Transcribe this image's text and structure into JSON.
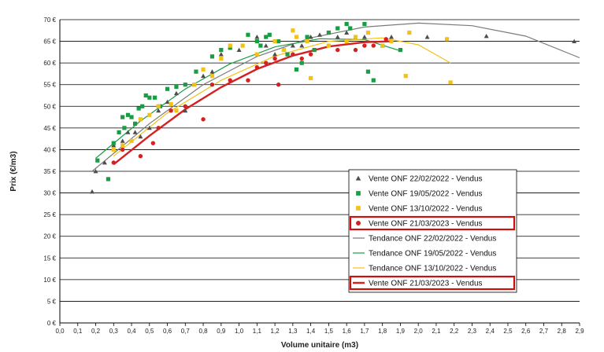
{
  "chart_data": {
    "type": "scatter",
    "xlabel": "Volume unitaire (m3)",
    "ylabel": "Prix (€/m3)",
    "xlim": [
      0,
      2.9
    ],
    "ylim": [
      0,
      70
    ],
    "xticks": [
      "0,0",
      "0,1",
      "0,2",
      "0,3",
      "0,4",
      "0,5",
      "0,6",
      "0,7",
      "0,8",
      "0,9",
      "1,0",
      "1,1",
      "1,2",
      "1,3",
      "1,4",
      "1,5",
      "1,6",
      "1,7",
      "1,8",
      "1,9",
      "2,0",
      "2,1",
      "2,2",
      "2,3",
      "2,4",
      "2,5",
      "2,6",
      "2,7",
      "2,8",
      "2,9"
    ],
    "yticks": [
      "0 €",
      "5 €",
      "10 €",
      "15 €",
      "20 €",
      "25 €",
      "30 €",
      "35 €",
      "40 €",
      "45 €",
      "50 €",
      "55 €",
      "60 €",
      "65 €",
      "70 €"
    ],
    "grid": "horizontal",
    "legend_position": "bottom-right",
    "series": [
      {
        "name": "Vente ONF 22/02/2022 - Vendus",
        "marker": "triangle",
        "color": "#4d4d4d",
        "points": [
          [
            0.18,
            30.3
          ],
          [
            0.2,
            35
          ],
          [
            0.25,
            37
          ],
          [
            0.3,
            41
          ],
          [
            0.35,
            42
          ],
          [
            0.38,
            44
          ],
          [
            0.42,
            44
          ],
          [
            0.45,
            43
          ],
          [
            0.5,
            45
          ],
          [
            0.55,
            49
          ],
          [
            0.6,
            51
          ],
          [
            0.65,
            53
          ],
          [
            0.7,
            49
          ],
          [
            0.75,
            55
          ],
          [
            0.8,
            57
          ],
          [
            0.85,
            58
          ],
          [
            0.9,
            62
          ],
          [
            1.0,
            63
          ],
          [
            1.1,
            66
          ],
          [
            1.15,
            64
          ],
          [
            1.2,
            62
          ],
          [
            1.25,
            63
          ],
          [
            1.3,
            64
          ],
          [
            1.35,
            64
          ],
          [
            1.4,
            66
          ],
          [
            1.45,
            66.5
          ],
          [
            1.5,
            67
          ],
          [
            1.55,
            66
          ],
          [
            1.6,
            67
          ],
          [
            1.7,
            66
          ],
          [
            1.8,
            64
          ],
          [
            1.85,
            66
          ],
          [
            2.05,
            66
          ],
          [
            2.38,
            66.2
          ],
          [
            2.87,
            65
          ]
        ]
      },
      {
        "name": "Vente ONF 19/05/2022 - Vendus",
        "marker": "square",
        "color": "#1a9c45",
        "points": [
          [
            0.21,
            37.5
          ],
          [
            0.27,
            33.2
          ],
          [
            0.3,
            41.5
          ],
          [
            0.33,
            44
          ],
          [
            0.35,
            47.5
          ],
          [
            0.36,
            45
          ],
          [
            0.38,
            48
          ],
          [
            0.4,
            47.5
          ],
          [
            0.42,
            46
          ],
          [
            0.44,
            49.5
          ],
          [
            0.46,
            50
          ],
          [
            0.48,
            52.5
          ],
          [
            0.5,
            52
          ],
          [
            0.53,
            52
          ],
          [
            0.56,
            50
          ],
          [
            0.6,
            54
          ],
          [
            0.65,
            54.5
          ],
          [
            0.7,
            55
          ],
          [
            0.76,
            58
          ],
          [
            0.85,
            61.5
          ],
          [
            0.9,
            63
          ],
          [
            0.95,
            63.5
          ],
          [
            1.05,
            66.5
          ],
          [
            1.1,
            65
          ],
          [
            1.12,
            64
          ],
          [
            1.15,
            66
          ],
          [
            1.17,
            66.5
          ],
          [
            1.22,
            65
          ],
          [
            1.27,
            62
          ],
          [
            1.32,
            58.5
          ],
          [
            1.35,
            60
          ],
          [
            1.38,
            66
          ],
          [
            1.42,
            63
          ],
          [
            1.5,
            67
          ],
          [
            1.55,
            68
          ],
          [
            1.6,
            69
          ],
          [
            1.62,
            68
          ],
          [
            1.7,
            69
          ],
          [
            1.72,
            58
          ],
          [
            1.75,
            56
          ],
          [
            1.8,
            64
          ],
          [
            1.9,
            63
          ]
        ]
      },
      {
        "name": "Vente ONF 13/10/2022 - Vendus",
        "marker": "square",
        "color": "#f2c21a",
        "points": [
          [
            0.3,
            40
          ],
          [
            0.35,
            41
          ],
          [
            0.4,
            42
          ],
          [
            0.45,
            47
          ],
          [
            0.5,
            48
          ],
          [
            0.55,
            50
          ],
          [
            0.62,
            50.5
          ],
          [
            0.65,
            49
          ],
          [
            0.75,
            55
          ],
          [
            0.8,
            58.5
          ],
          [
            0.85,
            57
          ],
          [
            0.9,
            61
          ],
          [
            0.95,
            64
          ],
          [
            1.02,
            64
          ],
          [
            1.1,
            62
          ],
          [
            1.2,
            65
          ],
          [
            1.25,
            63
          ],
          [
            1.3,
            67.5
          ],
          [
            1.32,
            66
          ],
          [
            1.38,
            65
          ],
          [
            1.4,
            56.5
          ],
          [
            1.5,
            64
          ],
          [
            1.6,
            65
          ],
          [
            1.65,
            66
          ],
          [
            1.72,
            67
          ],
          [
            1.8,
            64
          ],
          [
            1.85,
            65
          ],
          [
            1.93,
            57
          ],
          [
            1.95,
            67
          ],
          [
            2.16,
            65.5
          ],
          [
            2.18,
            55.5
          ]
        ]
      },
      {
        "name": "Vente ONF 21/03/2023 - Vendus",
        "marker": "circle",
        "color": "#d42020",
        "points": [
          [
            0.3,
            37
          ],
          [
            0.35,
            40
          ],
          [
            0.45,
            38.5
          ],
          [
            0.52,
            41.5
          ],
          [
            0.55,
            45
          ],
          [
            0.62,
            49
          ],
          [
            0.7,
            50
          ],
          [
            0.8,
            47
          ],
          [
            0.85,
            55
          ],
          [
            0.95,
            56
          ],
          [
            1.05,
            56
          ],
          [
            1.1,
            59
          ],
          [
            1.15,
            60
          ],
          [
            1.2,
            61
          ],
          [
            1.22,
            55
          ],
          [
            1.3,
            62
          ],
          [
            1.35,
            61
          ],
          [
            1.4,
            62
          ],
          [
            1.55,
            63
          ],
          [
            1.65,
            63
          ],
          [
            1.7,
            64
          ],
          [
            1.75,
            64
          ],
          [
            1.82,
            65.5
          ]
        ]
      }
    ],
    "trendlines": [
      {
        "name": "Tendance ONF 22/02/2022 - Vendus",
        "color": "#7a7a7a",
        "x": [
          0.18,
          0.5,
          0.8,
          1.1,
          1.4,
          1.7,
          2.0,
          2.3,
          2.6,
          2.9
        ],
        "y": [
          35,
          46,
          55,
          61.5,
          65.8,
          68.3,
          69.2,
          68.6,
          66.2,
          61.2
        ]
      },
      {
        "name": "Tendance ONF 19/05/2022 - Vendus",
        "color": "#1a9c45",
        "x": [
          0.2,
          0.45,
          0.7,
          0.95,
          1.2,
          1.45,
          1.7,
          1.9
        ],
        "y": [
          38,
          46.6,
          54,
          59.8,
          63.7,
          65.6,
          65.4,
          62.8
        ]
      },
      {
        "name": "Tendance ONF 13/10/2022 - Vendus",
        "color": "#f2c21a",
        "x": [
          0.3,
          0.6,
          0.9,
          1.2,
          1.5,
          1.8,
          2.0,
          2.18
        ],
        "y": [
          38.5,
          48.5,
          56,
          61.6,
          65,
          65.8,
          64.2,
          60
        ]
      },
      {
        "name": "Vente ONF 21/03/2023 - Vendus",
        "color": "#d42020",
        "x": [
          0.3,
          0.5,
          0.7,
          0.9,
          1.1,
          1.3,
          1.5,
          1.7,
          1.85
        ],
        "y": [
          36.6,
          43.2,
          49.3,
          54.4,
          58.6,
          61.7,
          63.8,
          64.8,
          65
        ]
      }
    ],
    "highlighted_legend_entries": [
      "Vente ONF 21/03/2023 - Vendus"
    ]
  }
}
